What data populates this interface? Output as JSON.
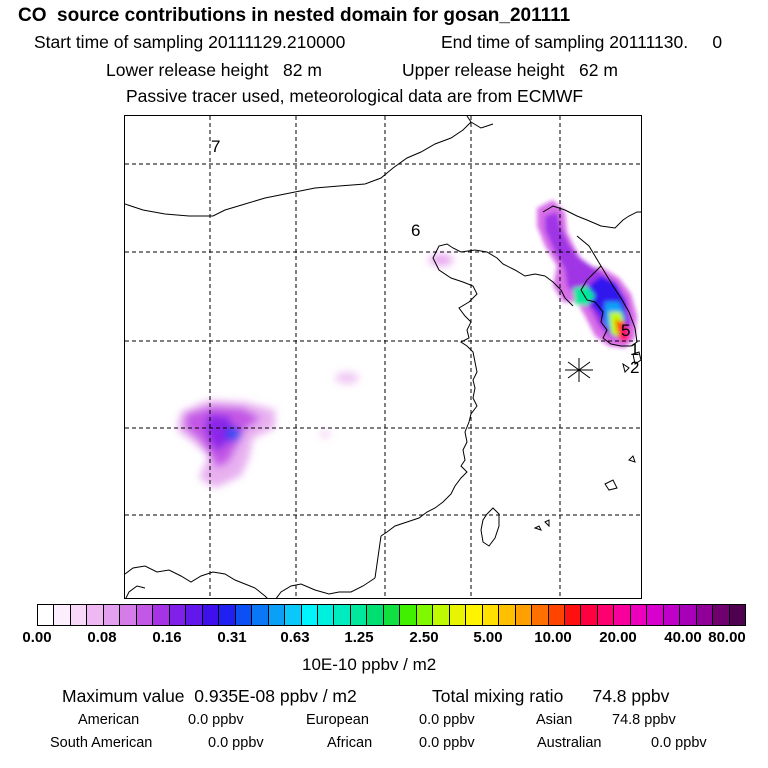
{
  "title": "CO  source contributions in nested domain for gosan_201111",
  "sampling": {
    "start": "Start time of sampling 20111129.210000",
    "end": "End time of sampling 20111130.     0"
  },
  "release": {
    "lower": "Lower release height   82 m",
    "upper": "Upper release height   62 m"
  },
  "tracer_note": "Passive tracer used, meteorological data are from ECMWF",
  "map_labels": {
    "r7": "7",
    "r6": "6",
    "r5": "5",
    "r1": "1",
    "r2": "2"
  },
  "colorbar": {
    "colors": [
      "#ffffff",
      "#fdeefd",
      "#f8d8f8",
      "#f0b8f2",
      "#e2a0ee",
      "#d47ce8",
      "#c458e6",
      "#a634e6",
      "#8020e8",
      "#6218ea",
      "#4010ec",
      "#2020f0",
      "#0a50f4",
      "#0a78f6",
      "#0aa0f8",
      "#0ac8fa",
      "#00f4ff",
      "#00f0e0",
      "#00ecc0",
      "#00e89c",
      "#00e070",
      "#10e040",
      "#40f000",
      "#80f800",
      "#c0fa00",
      "#e8f400",
      "#fff400",
      "#ffe000",
      "#ffc000",
      "#ffa000",
      "#ff7000",
      "#ff4400",
      "#ff1010",
      "#ff0040",
      "#ff0070",
      "#f8009c",
      "#ec00bc",
      "#d800cc",
      "#c000c8",
      "#a800b8",
      "#900098",
      "#700070",
      "#500050"
    ],
    "labels": [
      "0.00",
      "0.08",
      "0.16",
      "0.31",
      "0.63",
      "1.25",
      "2.50",
      "5.00",
      "10.00",
      "20.00",
      "40.00",
      "80.00"
    ],
    "unit": "10E-10 ppbv / m2"
  },
  "stats": {
    "max_value": "Maximum value  0.935E-08 ppbv / m2",
    "total_mixing": "Total mixing ratio      74.8 ppbv"
  },
  "regions": {
    "american": {
      "name": "American",
      "value": "0.0 ppbv"
    },
    "european": {
      "name": "European",
      "value": "0.0 ppbv"
    },
    "asian": {
      "name": "Asian",
      "value": "74.8 ppbv"
    },
    "south_american": {
      "name": "South American",
      "value": "0.0 ppbv"
    },
    "african": {
      "name": "African",
      "value": "0.0 ppbv"
    },
    "australian": {
      "name": "Australian",
      "value": "0.0 ppbv"
    }
  }
}
